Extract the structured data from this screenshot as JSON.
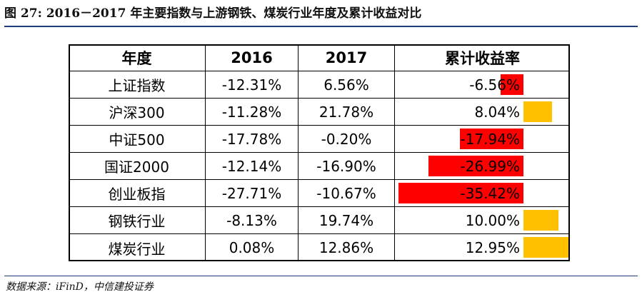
{
  "figure": {
    "title": "图 27: 2016－2017 年主要指数与上游钢铁、煤炭行业年度及累计收益对比",
    "source": "数据来源：iFinD，中信建投证券"
  },
  "colors": {
    "negative_bar": "#ff0000",
    "positive_bar": "#ffc000",
    "rule": "#1f3d7a"
  },
  "chart_data": {
    "type": "table",
    "columns": [
      "年度",
      "2016",
      "2017",
      "累计收益率"
    ],
    "rows": [
      {
        "name": "上证指数",
        "y2016": "-12.31%",
        "y2017": "6.56%",
        "cumulative": "-6.56%",
        "cumulative_value": -6.56
      },
      {
        "name": "沪深300",
        "y2016": "-11.28%",
        "y2017": "21.78%",
        "cumulative": "8.04%",
        "cumulative_value": 8.04
      },
      {
        "name": "中证500",
        "y2016": "-17.78%",
        "y2017": "-0.20%",
        "cumulative": "-17.94%",
        "cumulative_value": -17.94
      },
      {
        "name": "国证2000",
        "y2016": "-12.14%",
        "y2017": "-16.90%",
        "cumulative": "-26.99%",
        "cumulative_value": -26.99
      },
      {
        "name": "创业板指",
        "y2016": "-27.71%",
        "y2017": "-10.67%",
        "cumulative": "-35.42%",
        "cumulative_value": -35.42
      },
      {
        "name": "钢铁行业",
        "y2016": "-8.13%",
        "y2017": "19.74%",
        "cumulative": "10.00%",
        "cumulative_value": 10.0
      },
      {
        "name": "煤炭行业",
        "y2016": "0.08%",
        "y2017": "12.86%",
        "cumulative": "12.95%",
        "cumulative_value": 12.95
      }
    ]
  }
}
